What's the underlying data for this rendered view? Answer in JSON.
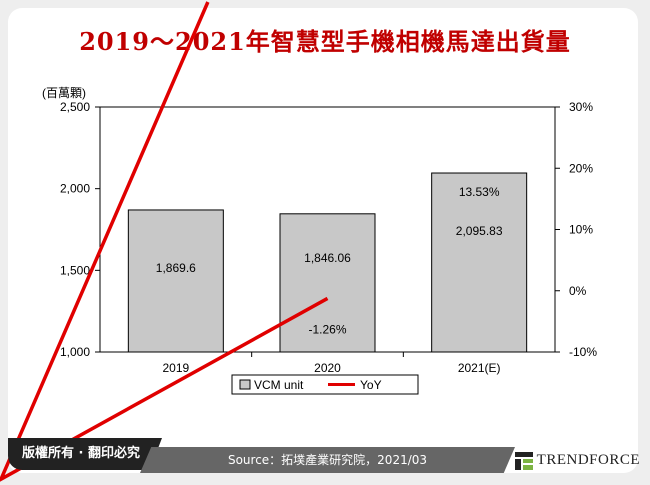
{
  "title": "2019～2021年智慧型手機相機馬達出貨量",
  "footer": {
    "copyright": "版權所有 · 翻印必究",
    "source": "Source：拓墣產業研究院，2021/03",
    "logo": "TrendForce"
  },
  "chart_data": {
    "type": "bar+line",
    "categories": [
      "2019",
      "2020",
      "2021(E)"
    ],
    "y_unit_label": "(百萬顆)",
    "y_left": {
      "min": 1000,
      "max": 2500,
      "ticks": [
        "1,000",
        "1,500",
        "2,000",
        "2,500"
      ]
    },
    "y_right": {
      "min": -10,
      "max": 30,
      "ticks": [
        "-10%",
        "0%",
        "10%",
        "20%",
        "30%"
      ]
    },
    "series": [
      {
        "name": "VCM unit",
        "type": "bar",
        "axis": "left",
        "values": [
          1869.6,
          1846.06,
          2095.83
        ],
        "labels": [
          "1,869.6",
          "1,846.06",
          "2,095.83"
        ],
        "color": "#c8c8c8"
      },
      {
        "name": "YoY",
        "type": "line",
        "axis": "right",
        "values": [
          null,
          -1.26,
          13.53
        ],
        "labels": [
          "",
          "-1.26%",
          "13.53%"
        ],
        "color": "#e00000"
      }
    ],
    "legend": "bottom",
    "grid": false
  }
}
